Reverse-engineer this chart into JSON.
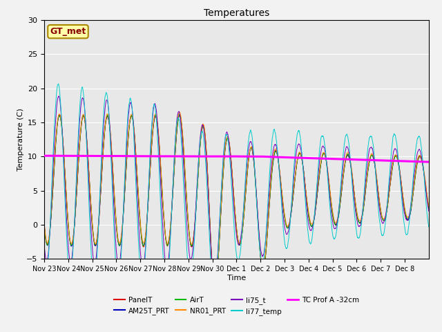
{
  "title": "Temperatures",
  "xlabel": "Time",
  "ylabel": "Temperature (C)",
  "ylim": [
    -5,
    30
  ],
  "plot_bg": "#e8e8e8",
  "fig_bg": "#f2f2f2",
  "gt_met_label": "GT_met",
  "series_names": [
    "PanelT",
    "AM25T_PRT",
    "AirT",
    "NR01_PRT",
    "li75_t",
    "li77_temp",
    "TC Prof A -32cm"
  ],
  "series_colors": [
    "#dd0000",
    "#0000bb",
    "#00bb00",
    "#ff8800",
    "#7700bb",
    "#00cccc",
    "#ff00ff"
  ],
  "x_tick_labels": [
    "Nov 23",
    "Nov 24",
    "Nov 25",
    "Nov 26",
    "Nov 27",
    "Nov 28",
    "Nov 29",
    "Nov 30",
    "Dec 1",
    "Dec 2",
    "Dec 3",
    "Dec 4",
    "Dec 5",
    "Dec 6",
    "Dec 7",
    "Dec 8"
  ],
  "n_days": 16,
  "pts_per_day": 144
}
